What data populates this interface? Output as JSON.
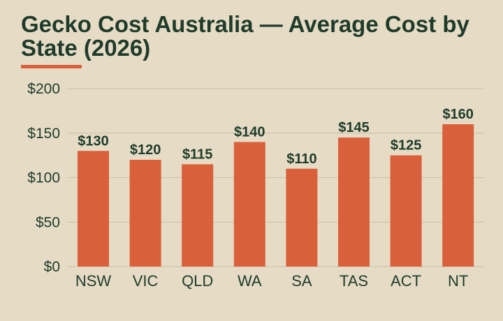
{
  "colors": {
    "background": "#e6dcc6",
    "bar": "#d9603b",
    "text": "#1f3b2a",
    "grid": "#c9bfa9"
  },
  "chart_data": {
    "type": "bar",
    "title": "Gecko Cost Australia — Average Cost by State (2026)",
    "xlabel": "",
    "ylabel": "",
    "categories": [
      "NSW",
      "VIC",
      "QLD",
      "WA",
      "SA",
      "TAS",
      "ACT",
      "NT"
    ],
    "values": [
      130,
      120,
      115,
      140,
      110,
      145,
      125,
      160
    ],
    "data_labels": [
      "$130",
      "$120",
      "$115",
      "$140",
      "$110",
      "$145",
      "$125",
      "$160"
    ],
    "ylim": [
      0,
      200
    ],
    "y_ticks": [
      0,
      50,
      100,
      150,
      200
    ],
    "y_tick_labels": [
      "$0",
      "$50",
      "$100",
      "$150",
      "$200"
    ],
    "grid": true,
    "legend": "none"
  }
}
